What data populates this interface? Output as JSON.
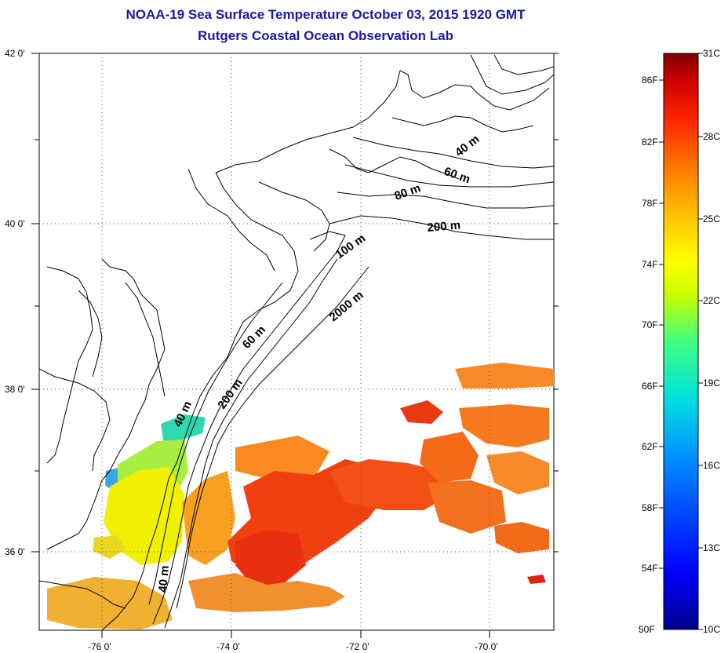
{
  "title": "NOAA-19 Sea Surface Temperature October 03, 2015 1920 GMT",
  "subtitle": "Rutgers Coastal Ocean Observation Lab",
  "map": {
    "lat_labels": [
      "42 0'",
      "40 0'",
      "38 0'",
      "36 0'"
    ],
    "lon_labels": [
      "-76 0'",
      "-74 0'",
      "-72 0'",
      "-70 0'"
    ],
    "contour_labels": [
      "40 m",
      "60 m",
      "80 m",
      "200 m",
      "100 m",
      "2000 m",
      "60 m",
      "200 m",
      "40 m",
      "40 m"
    ],
    "grid": "dotted"
  },
  "colorbar": {
    "celsius_labels": [
      "31C",
      "28C",
      "25C",
      "22C",
      "19C",
      "16C",
      "13C",
      "10C"
    ],
    "fahrenheit_labels": [
      "86F",
      "82F",
      "78F",
      "74F",
      "70F",
      "66F",
      "62F",
      "58F",
      "54F",
      "50F"
    ],
    "colors": [
      "#00008b",
      "#0000ff",
      "#0090ff",
      "#00e0e0",
      "#40ff80",
      "#c8ff00",
      "#ffff00",
      "#ffc000",
      "#ff7a00",
      "#ff2a00",
      "#d00000",
      "#800000"
    ]
  }
}
